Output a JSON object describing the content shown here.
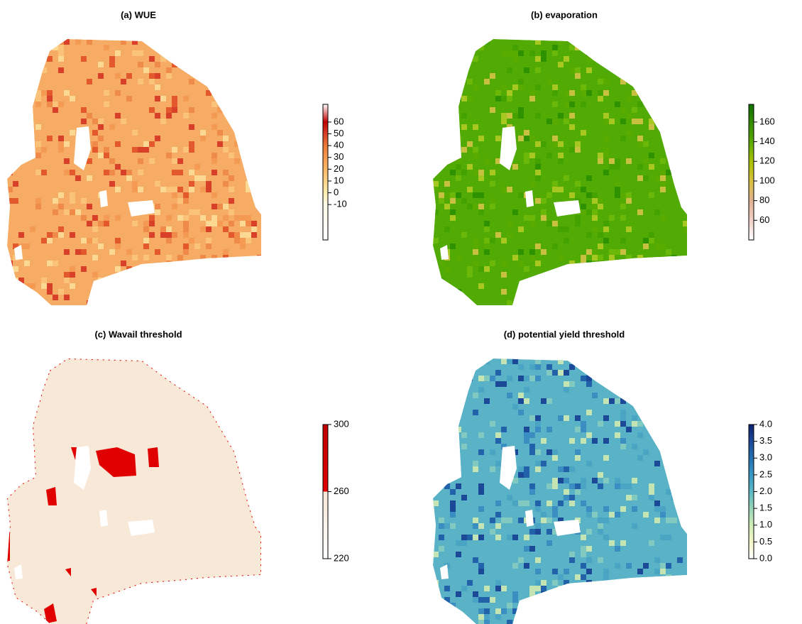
{
  "panels": [
    {
      "title": "(a) WUE",
      "colorbar": {
        "lim": [
          -40,
          75
        ],
        "ticks": [
          -10,
          0,
          10,
          20,
          30,
          40,
          50,
          60
        ],
        "stops": [
          {
            "value": -40,
            "color": "#ffffff"
          },
          {
            "value": -10,
            "color": "#fffbe8"
          },
          {
            "value": 0,
            "color": "#fdeeb0"
          },
          {
            "value": 10,
            "color": "#fdd488"
          },
          {
            "value": 20,
            "color": "#fbb868"
          },
          {
            "value": 30,
            "color": "#f59a4e"
          },
          {
            "value": 40,
            "color": "#ec7a3a"
          },
          {
            "value": 50,
            "color": "#d8402a"
          },
          {
            "value": 60,
            "color": "#c00000"
          },
          {
            "value": 75,
            "color": "#ffffff"
          }
        ]
      }
    },
    {
      "title": "(b) evaporation",
      "colorbar": {
        "lim": [
          40,
          178
        ],
        "ticks": [
          60,
          80,
          100,
          120,
          140,
          160
        ],
        "stops": [
          {
            "value": 40,
            "color": "#ffffff"
          },
          {
            "value": 60,
            "color": "#f0d0c8"
          },
          {
            "value": 80,
            "color": "#e0b090"
          },
          {
            "value": 100,
            "color": "#d8c040"
          },
          {
            "value": 120,
            "color": "#a8c000"
          },
          {
            "value": 140,
            "color": "#58a800"
          },
          {
            "value": 178,
            "color": "#107000"
          }
        ]
      }
    },
    {
      "title": "(c) Wavail threshold",
      "colorbar": {
        "lim": [
          220,
          300
        ],
        "ticks": [
          220,
          260,
          300
        ],
        "stops": [
          {
            "value": 220,
            "color": "#ffffff"
          },
          {
            "value": 260,
            "color": "#f8e8d8"
          },
          {
            "value": 260,
            "color": "#e00000"
          },
          {
            "value": 300,
            "color": "#c00000"
          }
        ]
      }
    },
    {
      "title": "(d) potential yield threshold",
      "colorbar": {
        "lim": [
          0,
          4
        ],
        "ticks": [
          {
            "value": 0,
            "label": "0.0"
          },
          {
            "value": 0.5,
            "label": "0.5"
          },
          {
            "value": 1,
            "label": "1.0"
          },
          {
            "value": 1.5,
            "label": "1.5"
          },
          {
            "value": 2,
            "label": "2.0"
          },
          {
            "value": 2.5,
            "label": "2.5"
          },
          {
            "value": 3,
            "label": "3.0"
          },
          {
            "value": 3.5,
            "label": "3.5"
          },
          {
            "value": 4,
            "label": "4.0"
          }
        ],
        "stops": [
          {
            "value": 0,
            "color": "#ffffff"
          },
          {
            "value": 0.5,
            "color": "#f4f8c8"
          },
          {
            "value": 1,
            "color": "#d0ecb8"
          },
          {
            "value": 1.5,
            "color": "#98d4b8"
          },
          {
            "value": 2,
            "color": "#5cb8c4"
          },
          {
            "value": 2.5,
            "color": "#3898c4"
          },
          {
            "value": 3,
            "color": "#2470b0"
          },
          {
            "value": 3.5,
            "color": "#1c4898"
          },
          {
            "value": 4,
            "color": "#0c2070"
          }
        ]
      }
    }
  ]
}
